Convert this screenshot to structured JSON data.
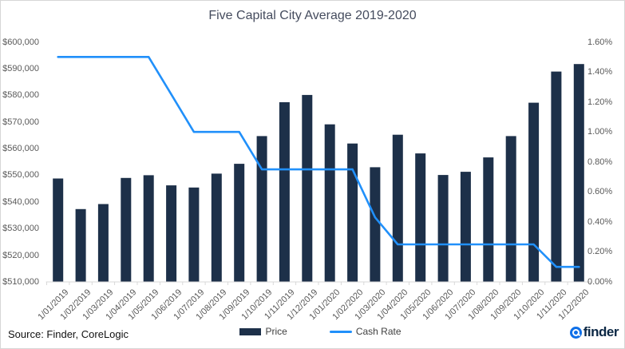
{
  "chart_data": {
    "type": "bar",
    "subtype": "bar-line-combo",
    "title": "Five Capital City Average 2019-2020",
    "categories": [
      "1/01/2019",
      "1/02/2019",
      "1/03/2019",
      "1/04/2019",
      "1/05/2019",
      "1/06/2019",
      "1/07/2019",
      "1/08/2019",
      "1/09/2019",
      "1/10/2019",
      "1/11/2019",
      "1/12/2019",
      "1/01/2020",
      "1/02/2020",
      "1/03/2020",
      "1/04/2020",
      "1/05/2020",
      "1/06/2020",
      "1/07/2020",
      "1/08/2020",
      "1/09/2020",
      "1/10/2020",
      "1/11/2020",
      "1/12/2020"
    ],
    "series": [
      {
        "name": "Price",
        "type": "bar",
        "axis": "left",
        "color": "#1d3049",
        "values": [
          548800,
          537300,
          539200,
          549000,
          550000,
          546200,
          545400,
          550600,
          554300,
          564700,
          577400,
          580100,
          569100,
          561900,
          553000,
          565200,
          558200,
          550100,
          551300,
          556700,
          564700,
          577200,
          588900,
          591700
        ]
      },
      {
        "name": "Cash Rate",
        "type": "line",
        "axis": "right",
        "color": "#2190fa",
        "values": [
          1.5,
          1.5,
          1.5,
          1.5,
          1.5,
          1.25,
          1.0,
          1.0,
          1.0,
          0.75,
          0.75,
          0.75,
          0.75,
          0.75,
          0.43,
          0.25,
          0.25,
          0.25,
          0.25,
          0.25,
          0.25,
          0.25,
          0.1,
          0.1
        ]
      }
    ],
    "left_axis": {
      "min": 510000,
      "max": 600000,
      "step": 10000,
      "labels": [
        "$600,000",
        "$590,000",
        "$580,000",
        "$570,000",
        "$560,000",
        "$550,000",
        "$540,000",
        "$530,000",
        "$520,000",
        "$510,000"
      ]
    },
    "right_axis": {
      "min": 0.0,
      "max": 1.6,
      "step": 0.2,
      "labels": [
        "1.60%",
        "1.40%",
        "1.20%",
        "1.00%",
        "0.80%",
        "0.60%",
        "0.40%",
        "0.20%",
        "0.00%"
      ]
    },
    "grid": false,
    "legend_position": "bottom",
    "axis_color": "#d9d9d9",
    "label_color": "#595959"
  },
  "footer": {
    "source": "Source: Finder, CoreLogic",
    "logo_text": "finder",
    "logo_circle_color": "#0f70e8",
    "logo_text_color": "#0b2744"
  }
}
